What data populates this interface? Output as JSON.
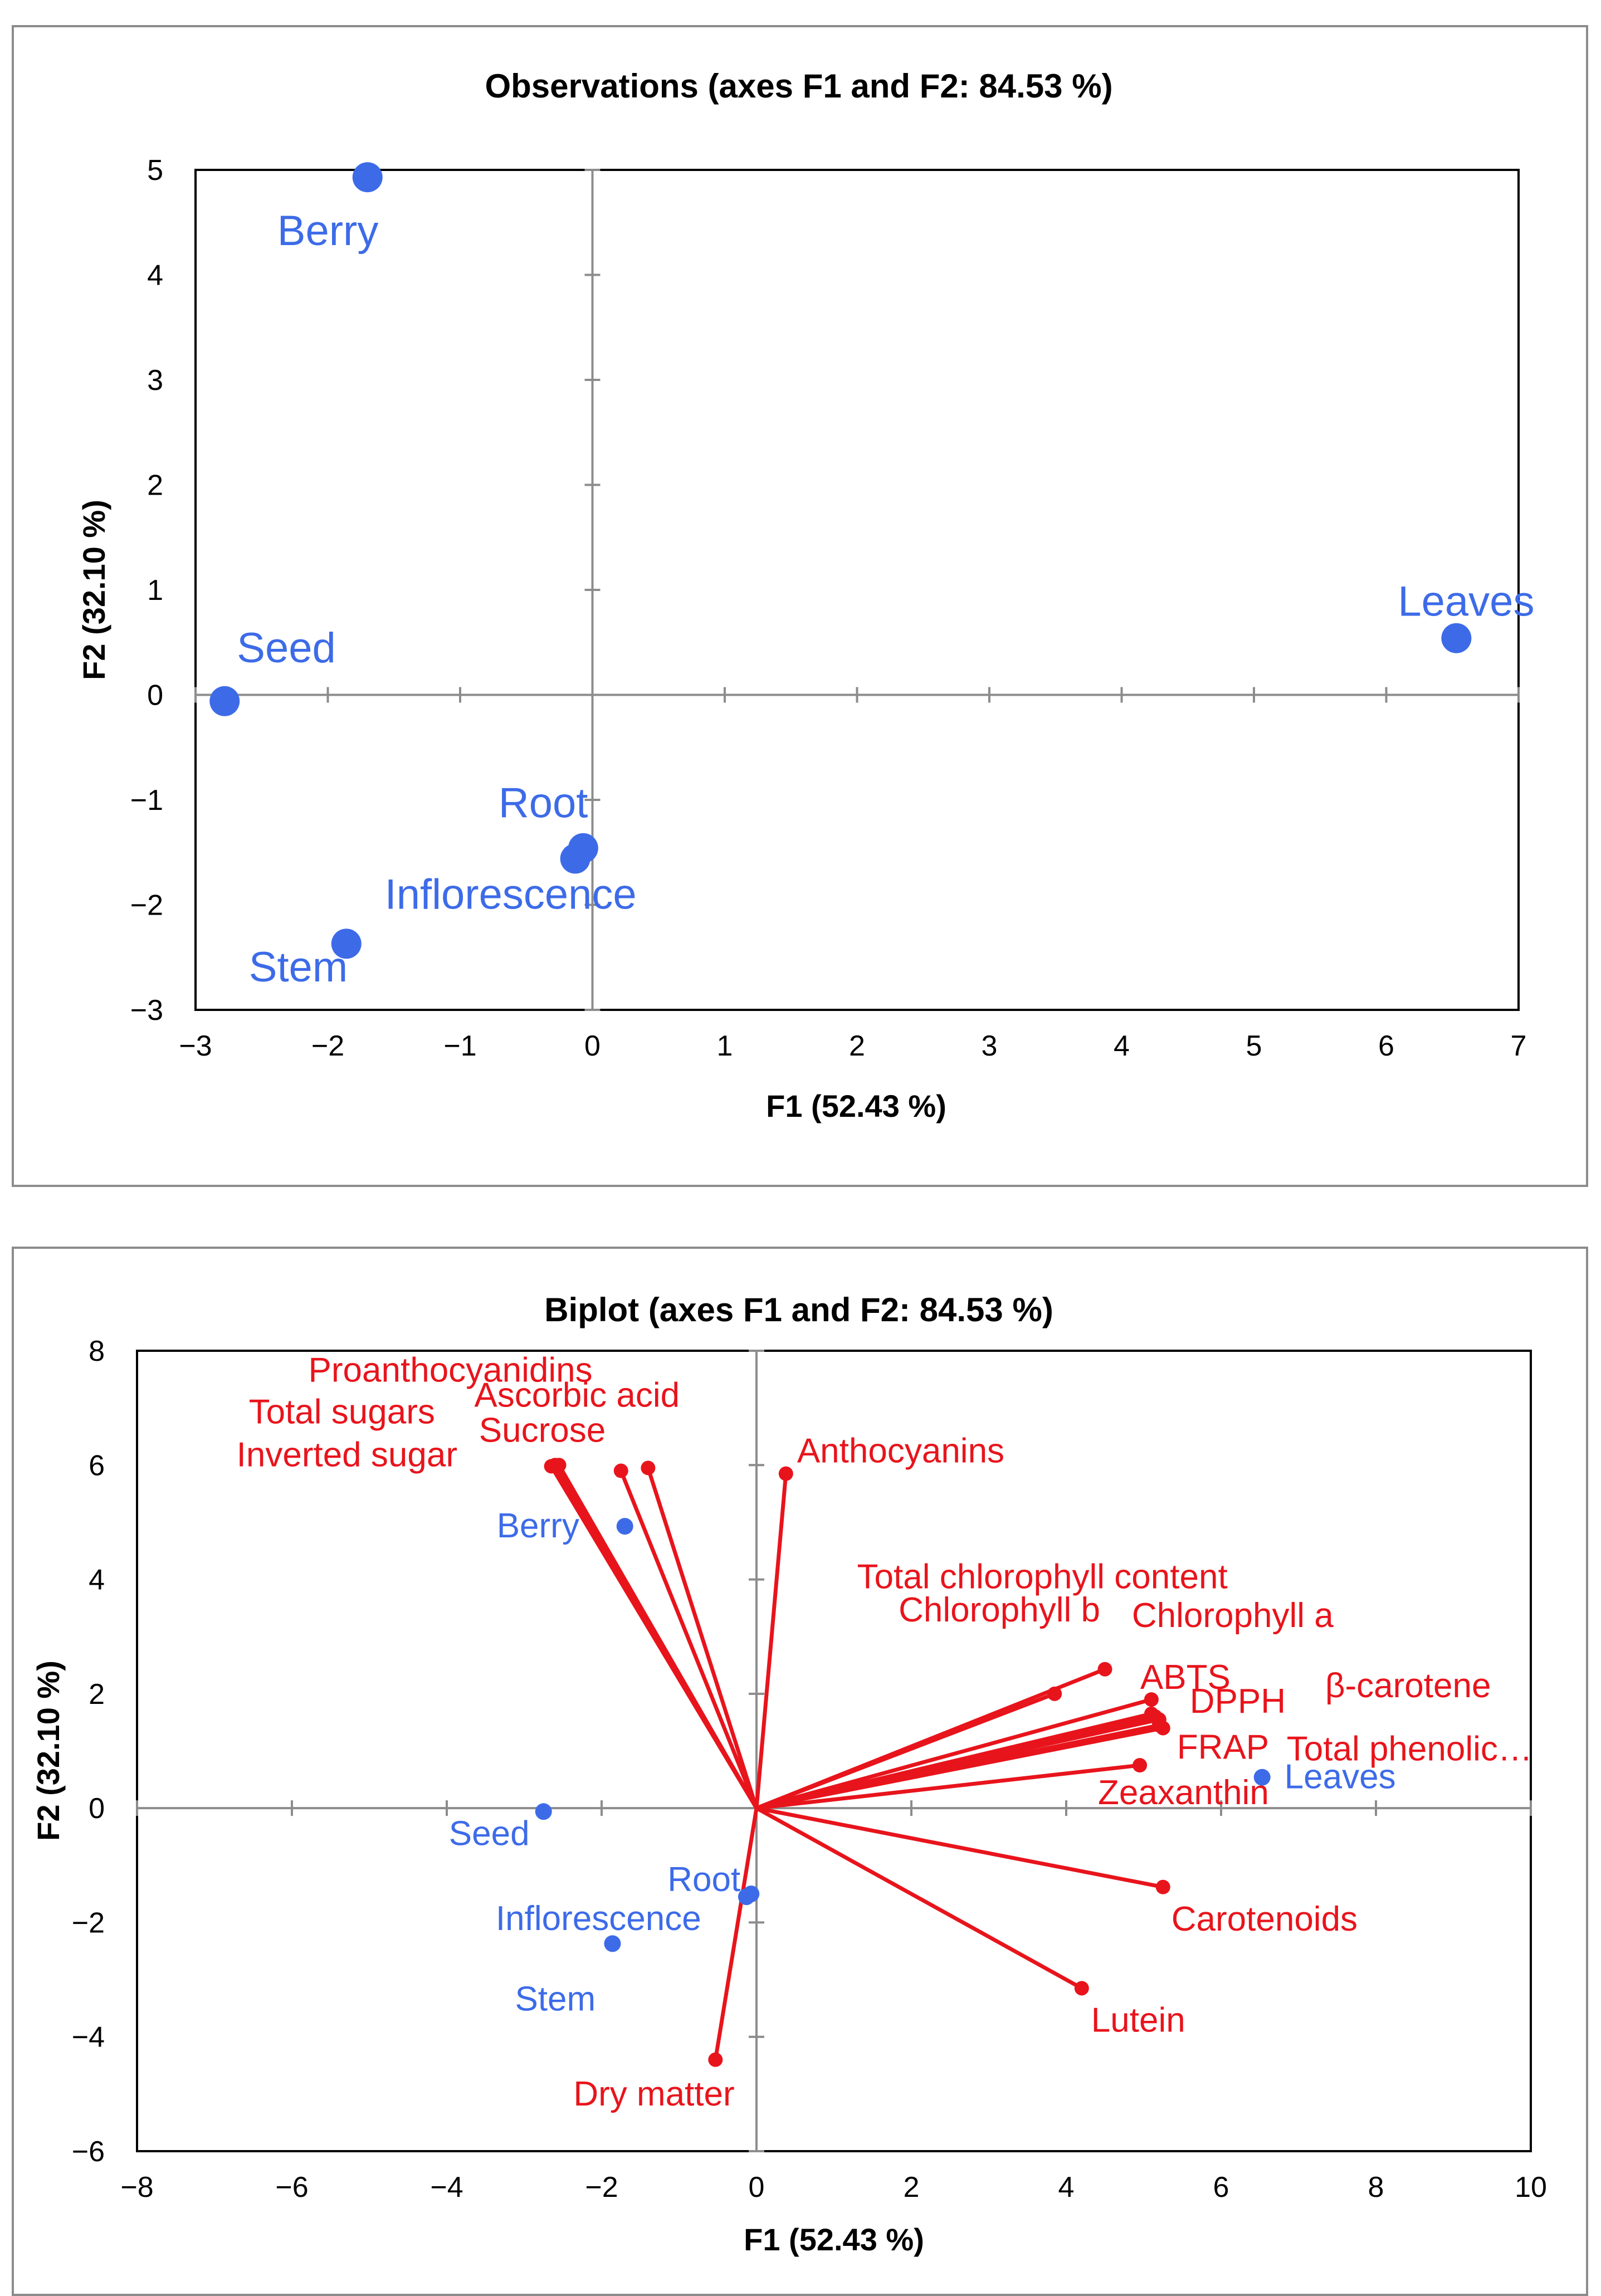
{
  "chart_data": [
    {
      "type": "scatter",
      "title": "Observations (axes F1 and F2: 84.53 %)",
      "xlabel": "F1 (52.43 %)",
      "ylabel": "F2 (32.10 %)",
      "xlim": [
        -3,
        7
      ],
      "ylim": [
        -3,
        5
      ],
      "xticks": [
        "−3",
        "−2",
        "−1",
        "0",
        "1",
        "2",
        "3",
        "4",
        "5",
        "6",
        "7"
      ],
      "yticks": [
        "−3",
        "−2",
        "−1",
        "0",
        "1",
        "2",
        "3",
        "4",
        "5"
      ],
      "color": "#3D6BE8",
      "points": [
        {
          "label": "Berry",
          "x": -1.7,
          "y": 4.93
        },
        {
          "label": "Seed",
          "x": -2.78,
          "y": -0.06
        },
        {
          "label": "Root",
          "x": -0.07,
          "y": -1.46
        },
        {
          "label": "Inflorescence",
          "x": -0.13,
          "y": -1.56
        },
        {
          "label": "Stem",
          "x": -1.86,
          "y": -2.37
        },
        {
          "label": "Leaves",
          "x": 6.53,
          "y": 0.54
        }
      ]
    },
    {
      "type": "scatter",
      "title": "Biplot (axes F1 and F2: 84.53 %)",
      "xlabel": "F1 (52.43 %)",
      "ylabel": "F2 (32.10 %)",
      "xlim": [
        -8,
        10
      ],
      "ylim": [
        -6,
        8
      ],
      "xticks": [
        "−8",
        "−6",
        "−4",
        "−2",
        "0",
        "2",
        "4",
        "6",
        "8",
        "10"
      ],
      "yticks": [
        "−6",
        "−4",
        "−2",
        "0",
        "2",
        "4",
        "6",
        "8"
      ],
      "observation_color": "#3D6BE8",
      "vector_color": "#E8141C",
      "observations": [
        {
          "label": "Berry",
          "x": -1.7,
          "y": 4.93
        },
        {
          "label": "Seed",
          "x": -2.75,
          "y": -0.06
        },
        {
          "label": "Root",
          "x": -0.07,
          "y": -1.5
        },
        {
          "label": "Inflorescence",
          "x": -0.13,
          "y": -1.55
        },
        {
          "label": "Stem",
          "x": -1.86,
          "y": -2.37
        },
        {
          "label": "Leaves",
          "x": 6.53,
          "y": 0.54
        }
      ],
      "vectors": [
        {
          "label": "Proanthocyanidins",
          "x": -2.55,
          "y": 6.0
        },
        {
          "label": "Total sugars",
          "x": -2.6,
          "y": 6.0
        },
        {
          "label": "Inverted sugar",
          "x": -2.65,
          "y": 5.98
        },
        {
          "label": "Sucrose",
          "x": -1.75,
          "y": 5.9
        },
        {
          "label": "Ascorbic acid",
          "x": -1.4,
          "y": 5.95
        },
        {
          "label": "Anthocyanins",
          "x": 0.38,
          "y": 5.85
        },
        {
          "label": "Total chlorophyll content",
          "x": 4.5,
          "y": 2.43
        },
        {
          "label": "Chlorophyll b",
          "x": 3.85,
          "y": 2.0
        },
        {
          "label": "Chlorophyll a",
          "x": 5.1,
          "y": 1.9
        },
        {
          "label": "ABTS",
          "x": 5.1,
          "y": 1.65
        },
        {
          "label": "β-carotene",
          "x": 5.15,
          "y": 1.6
        },
        {
          "label": "DPPH",
          "x": 5.2,
          "y": 1.55
        },
        {
          "label": "FRAP",
          "x": 5.2,
          "y": 1.45
        },
        {
          "label": "Total phenolic…",
          "x": 5.25,
          "y": 1.4
        },
        {
          "label": "Zeaxanthin",
          "x": 4.95,
          "y": 0.75
        },
        {
          "label": "Carotenoids",
          "x": 5.25,
          "y": -1.38
        },
        {
          "label": "Lutein",
          "x": 4.2,
          "y": -3.15
        },
        {
          "label": "Dry matter",
          "x": -0.53,
          "y": -4.4
        }
      ]
    }
  ]
}
